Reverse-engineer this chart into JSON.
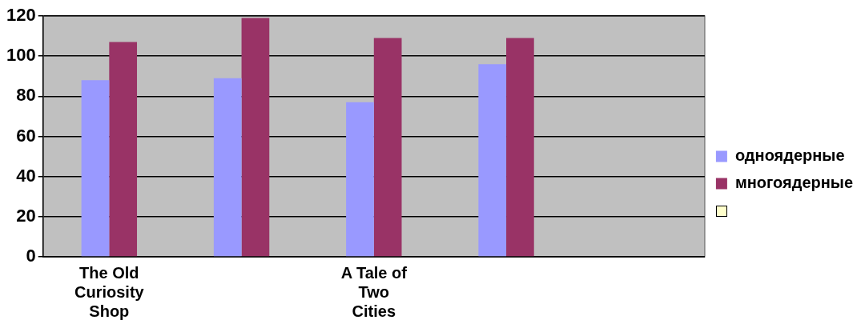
{
  "chart_data": {
    "type": "bar",
    "categories": [
      "The Old Curiosity Shop",
      null,
      "A Tale of Two Cities",
      null,
      null
    ],
    "series": [
      {
        "name": "одноядерные",
        "color": "#9999ff",
        "values": [
          88,
          89,
          77,
          96,
          null
        ]
      },
      {
        "name": "многоядерные",
        "color": "#993366",
        "values": [
          107,
          119,
          109,
          109,
          null
        ]
      }
    ],
    "ylim": [
      0,
      120
    ],
    "yticks": [
      0,
      20,
      40,
      60,
      80,
      100,
      120
    ],
    "grid": "y",
    "legend": "right"
  }
}
